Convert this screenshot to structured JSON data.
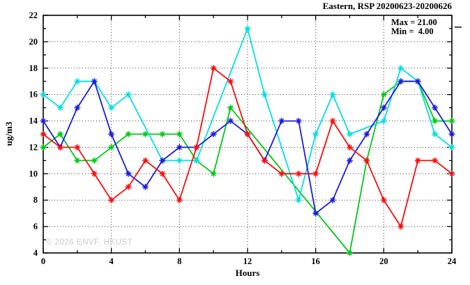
{
  "title": "Eastern, RSP 20200623-20200626",
  "legend": {
    "max_label": "Max = 21.00",
    "min_label": "Min =  4.00",
    "max_value": 21.0,
    "min_value": 4.0
  },
  "watermark": "© 2026 ENVF, HKUST",
  "chart_data": {
    "type": "line",
    "title": "Eastern, RSP 20200623-20200626",
    "xlabel": "Hours",
    "ylabel": "ug/m3",
    "x_range": [
      0,
      24
    ],
    "y_range": [
      4,
      22
    ],
    "x_ticks_labeled": [
      0,
      4,
      8,
      12,
      16,
      20,
      24
    ],
    "x_ticks_minor": [
      2,
      6,
      10,
      14,
      18,
      22
    ],
    "y_ticks_labeled": [
      4,
      6,
      8,
      10,
      12,
      14,
      16,
      18,
      20,
      22
    ],
    "y_ticks_minor": [
      5,
      7,
      9,
      11,
      13,
      15,
      17,
      19,
      21
    ],
    "grid": true,
    "legend_position": "top-right-inside",
    "marker": "asterisk",
    "x": [
      0,
      1,
      2,
      3,
      4,
      5,
      6,
      7,
      8,
      9,
      10,
      11,
      12,
      13,
      14,
      15,
      16,
      17,
      18,
      19,
      20,
      21,
      22,
      23,
      24
    ],
    "series": [
      {
        "name": "green-day-series",
        "color": "#00c814",
        "values": [
          12,
          13,
          11,
          11,
          12,
          13,
          13,
          13,
          13,
          11,
          10,
          15,
          null,
          null,
          null,
          null,
          null,
          null,
          4,
          11,
          16,
          17,
          17,
          14,
          14
        ]
      },
      {
        "name": "cyan-day-series",
        "color": "#00e0e0",
        "values": [
          16,
          15,
          17,
          17,
          15,
          16,
          null,
          11,
          11,
          11,
          null,
          null,
          21,
          16,
          null,
          8,
          13,
          16,
          13,
          null,
          14,
          18,
          17,
          13,
          12
        ]
      },
      {
        "name": "blue-day-series",
        "color": "#1a1ae0",
        "values": [
          14,
          12,
          15,
          17,
          13,
          10,
          9,
          11,
          12,
          12,
          13,
          14,
          13,
          11,
          14,
          14,
          7,
          8,
          11,
          13,
          15,
          17,
          17,
          15,
          13
        ]
      },
      {
        "name": "red-day-series",
        "color": "#fa0c0c",
        "values": [
          13,
          12,
          12,
          10,
          8,
          9,
          11,
          10,
          8,
          12,
          18,
          17,
          13,
          11,
          10,
          10,
          10,
          14,
          12,
          11,
          8,
          6,
          11,
          11,
          10
        ]
      }
    ]
  }
}
